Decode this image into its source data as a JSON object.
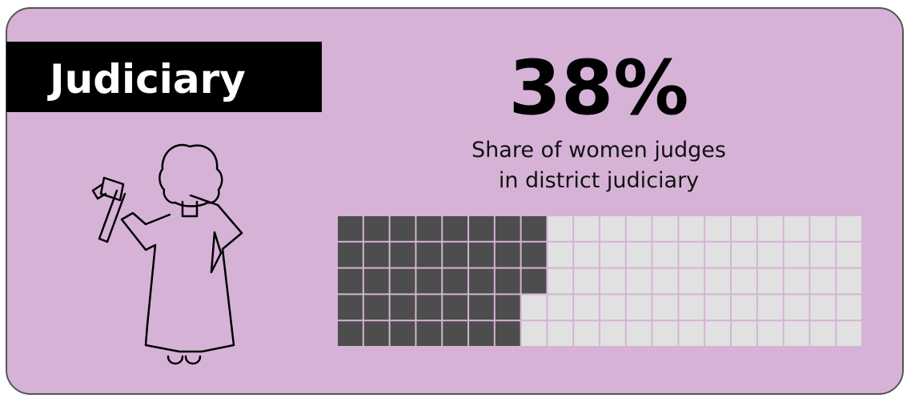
{
  "chart_data": {
    "type": "waffle",
    "title": "Judiciary",
    "values": [
      38
    ],
    "value_labels": [
      "38%"
    ],
    "subtitle": [
      "Share of women judges",
      "in district judiciary"
    ],
    "color": "#4d4d4d",
    "empty_color": "#e1e1e1"
  }
}
